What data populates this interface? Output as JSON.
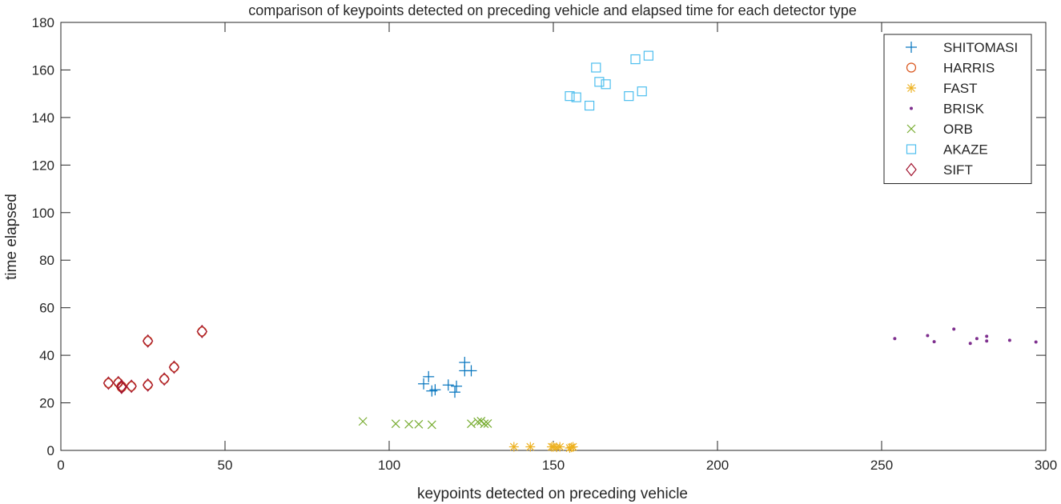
{
  "chart_data": {
    "type": "scatter",
    "title": "comparison of keypoints detected on preceding vehicle and elapsed time for each detector type",
    "xlabel": "keypoints detected on preceding vehicle",
    "ylabel": "time elapsed",
    "xlim": [
      0,
      300
    ],
    "ylim": [
      0,
      180
    ],
    "xticks": [
      0,
      50,
      100,
      150,
      200,
      250,
      300
    ],
    "yticks": [
      0,
      20,
      40,
      60,
      80,
      100,
      120,
      140,
      160,
      180
    ],
    "grid": false,
    "legend_position": "top-right",
    "series": [
      {
        "name": "SHITOMASI",
        "marker": "plus",
        "color": "#0072BD",
        "points": [
          [
            110.5,
            28
          ],
          [
            112,
            31
          ],
          [
            113,
            25
          ],
          [
            114,
            25.5
          ],
          [
            118,
            27.5
          ],
          [
            120,
            24.5
          ],
          [
            120.5,
            27
          ],
          [
            123,
            37
          ],
          [
            123,
            33.5
          ],
          [
            125,
            33.5
          ]
        ]
      },
      {
        "name": "HARRIS",
        "marker": "circle",
        "color": "#D95319",
        "points": [
          [
            14.5,
            28.3
          ],
          [
            17.5,
            28.5
          ],
          [
            18.5,
            27
          ],
          [
            18.5,
            26.5
          ],
          [
            21.5,
            27
          ],
          [
            26.5,
            46
          ],
          [
            26.5,
            27.5
          ],
          [
            31.5,
            30
          ],
          [
            34.5,
            35
          ],
          [
            43,
            50
          ]
        ]
      },
      {
        "name": "FAST",
        "marker": "asterisk",
        "color": "#EDB120",
        "points": [
          [
            138,
            1.5
          ],
          [
            143,
            1.5
          ],
          [
            149.5,
            1.5
          ],
          [
            150,
            1.5
          ],
          [
            151,
            1.3
          ],
          [
            152,
            1.5
          ],
          [
            155,
            1
          ],
          [
            155.5,
            1.3
          ],
          [
            156,
            1.5
          ]
        ]
      },
      {
        "name": "BRISK",
        "marker": "point",
        "color": "#7E2F8E",
        "points": [
          [
            254,
            47
          ],
          [
            264,
            48.3
          ],
          [
            266,
            45.7
          ],
          [
            272,
            51
          ],
          [
            277,
            45
          ],
          [
            279,
            47
          ],
          [
            282,
            46
          ],
          [
            282,
            48
          ],
          [
            289,
            46.3
          ],
          [
            297,
            45.6
          ]
        ]
      },
      {
        "name": "ORB",
        "marker": "x",
        "color": "#77AC30",
        "points": [
          [
            92,
            12.2
          ],
          [
            102,
            11.2
          ],
          [
            106,
            11
          ],
          [
            109,
            11
          ],
          [
            113,
            10.8
          ],
          [
            125,
            11.2
          ],
          [
            127,
            12
          ],
          [
            128,
            12.3
          ],
          [
            129,
            11.2
          ],
          [
            130,
            11.3
          ]
        ]
      },
      {
        "name": "AKAZE",
        "marker": "square",
        "color": "#4DBEEE",
        "points": [
          [
            155,
            149
          ],
          [
            157,
            148.5
          ],
          [
            161,
            145
          ],
          [
            163,
            161
          ],
          [
            164,
            155
          ],
          [
            166,
            154
          ],
          [
            173,
            149
          ],
          [
            175,
            164.5
          ],
          [
            177,
            151
          ],
          [
            179,
            166
          ]
        ]
      },
      {
        "name": "SIFT",
        "marker": "diamond",
        "color": "#A2142F",
        "points": [
          [
            14.5,
            28.3
          ],
          [
            17.5,
            28.5
          ],
          [
            18.5,
            27
          ],
          [
            18.5,
            26.5
          ],
          [
            21.5,
            27
          ],
          [
            26.5,
            46
          ],
          [
            26.5,
            27.5
          ],
          [
            31.5,
            30
          ],
          [
            34.5,
            35
          ],
          [
            43,
            50
          ]
        ]
      }
    ]
  }
}
